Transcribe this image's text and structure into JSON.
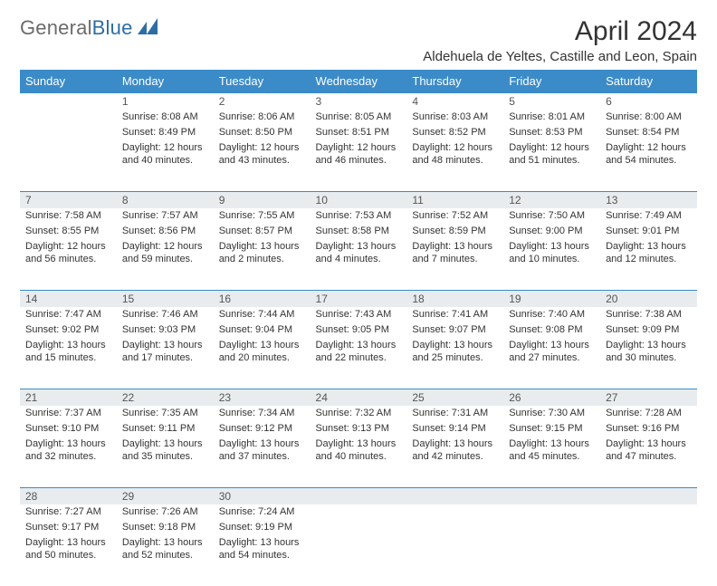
{
  "logo": {
    "word1": "General",
    "word2": "Blue"
  },
  "header": {
    "title": "April 2024",
    "location": "Aldehuela de Yeltes, Castille and Leon, Spain"
  },
  "colors": {
    "header_blue": "#3b8bc9",
    "accent_blue": "#2e6da4",
    "row_band": "#e8ecef",
    "divider": "#3b8bc9",
    "text": "#333333",
    "logo_gray": "#6b6b6b",
    "background": "#ffffff"
  },
  "calendar": {
    "month": 4,
    "year": 2024,
    "first_weekday_index": 1,
    "weekday_labels": [
      "Sunday",
      "Monday",
      "Tuesday",
      "Wednesday",
      "Thursday",
      "Friday",
      "Saturday"
    ],
    "days": [
      {
        "n": 1,
        "sunrise": "8:08 AM",
        "sunset": "8:49 PM",
        "daylight": "12 hours and 40 minutes."
      },
      {
        "n": 2,
        "sunrise": "8:06 AM",
        "sunset": "8:50 PM",
        "daylight": "12 hours and 43 minutes."
      },
      {
        "n": 3,
        "sunrise": "8:05 AM",
        "sunset": "8:51 PM",
        "daylight": "12 hours and 46 minutes."
      },
      {
        "n": 4,
        "sunrise": "8:03 AM",
        "sunset": "8:52 PM",
        "daylight": "12 hours and 48 minutes."
      },
      {
        "n": 5,
        "sunrise": "8:01 AM",
        "sunset": "8:53 PM",
        "daylight": "12 hours and 51 minutes."
      },
      {
        "n": 6,
        "sunrise": "8:00 AM",
        "sunset": "8:54 PM",
        "daylight": "12 hours and 54 minutes."
      },
      {
        "n": 7,
        "sunrise": "7:58 AM",
        "sunset": "8:55 PM",
        "daylight": "12 hours and 56 minutes."
      },
      {
        "n": 8,
        "sunrise": "7:57 AM",
        "sunset": "8:56 PM",
        "daylight": "12 hours and 59 minutes."
      },
      {
        "n": 9,
        "sunrise": "7:55 AM",
        "sunset": "8:57 PM",
        "daylight": "13 hours and 2 minutes."
      },
      {
        "n": 10,
        "sunrise": "7:53 AM",
        "sunset": "8:58 PM",
        "daylight": "13 hours and 4 minutes."
      },
      {
        "n": 11,
        "sunrise": "7:52 AM",
        "sunset": "8:59 PM",
        "daylight": "13 hours and 7 minutes."
      },
      {
        "n": 12,
        "sunrise": "7:50 AM",
        "sunset": "9:00 PM",
        "daylight": "13 hours and 10 minutes."
      },
      {
        "n": 13,
        "sunrise": "7:49 AM",
        "sunset": "9:01 PM",
        "daylight": "13 hours and 12 minutes."
      },
      {
        "n": 14,
        "sunrise": "7:47 AM",
        "sunset": "9:02 PM",
        "daylight": "13 hours and 15 minutes."
      },
      {
        "n": 15,
        "sunrise": "7:46 AM",
        "sunset": "9:03 PM",
        "daylight": "13 hours and 17 minutes."
      },
      {
        "n": 16,
        "sunrise": "7:44 AM",
        "sunset": "9:04 PM",
        "daylight": "13 hours and 20 minutes."
      },
      {
        "n": 17,
        "sunrise": "7:43 AM",
        "sunset": "9:05 PM",
        "daylight": "13 hours and 22 minutes."
      },
      {
        "n": 18,
        "sunrise": "7:41 AM",
        "sunset": "9:07 PM",
        "daylight": "13 hours and 25 minutes."
      },
      {
        "n": 19,
        "sunrise": "7:40 AM",
        "sunset": "9:08 PM",
        "daylight": "13 hours and 27 minutes."
      },
      {
        "n": 20,
        "sunrise": "7:38 AM",
        "sunset": "9:09 PM",
        "daylight": "13 hours and 30 minutes."
      },
      {
        "n": 21,
        "sunrise": "7:37 AM",
        "sunset": "9:10 PM",
        "daylight": "13 hours and 32 minutes."
      },
      {
        "n": 22,
        "sunrise": "7:35 AM",
        "sunset": "9:11 PM",
        "daylight": "13 hours and 35 minutes."
      },
      {
        "n": 23,
        "sunrise": "7:34 AM",
        "sunset": "9:12 PM",
        "daylight": "13 hours and 37 minutes."
      },
      {
        "n": 24,
        "sunrise": "7:32 AM",
        "sunset": "9:13 PM",
        "daylight": "13 hours and 40 minutes."
      },
      {
        "n": 25,
        "sunrise": "7:31 AM",
        "sunset": "9:14 PM",
        "daylight": "13 hours and 42 minutes."
      },
      {
        "n": 26,
        "sunrise": "7:30 AM",
        "sunset": "9:15 PM",
        "daylight": "13 hours and 45 minutes."
      },
      {
        "n": 27,
        "sunrise": "7:28 AM",
        "sunset": "9:16 PM",
        "daylight": "13 hours and 47 minutes."
      },
      {
        "n": 28,
        "sunrise": "7:27 AM",
        "sunset": "9:17 PM",
        "daylight": "13 hours and 50 minutes."
      },
      {
        "n": 29,
        "sunrise": "7:26 AM",
        "sunset": "9:18 PM",
        "daylight": "13 hours and 52 minutes."
      },
      {
        "n": 30,
        "sunrise": "7:24 AM",
        "sunset": "9:19 PM",
        "daylight": "13 hours and 54 minutes."
      }
    ],
    "labels": {
      "sunrise": "Sunrise:",
      "sunset": "Sunset:",
      "daylight": "Daylight:"
    }
  },
  "typography": {
    "title_fontsize": 30,
    "location_fontsize": 15,
    "weekday_fontsize": 13,
    "daynum_fontsize": 12,
    "info_fontsize": 11
  }
}
